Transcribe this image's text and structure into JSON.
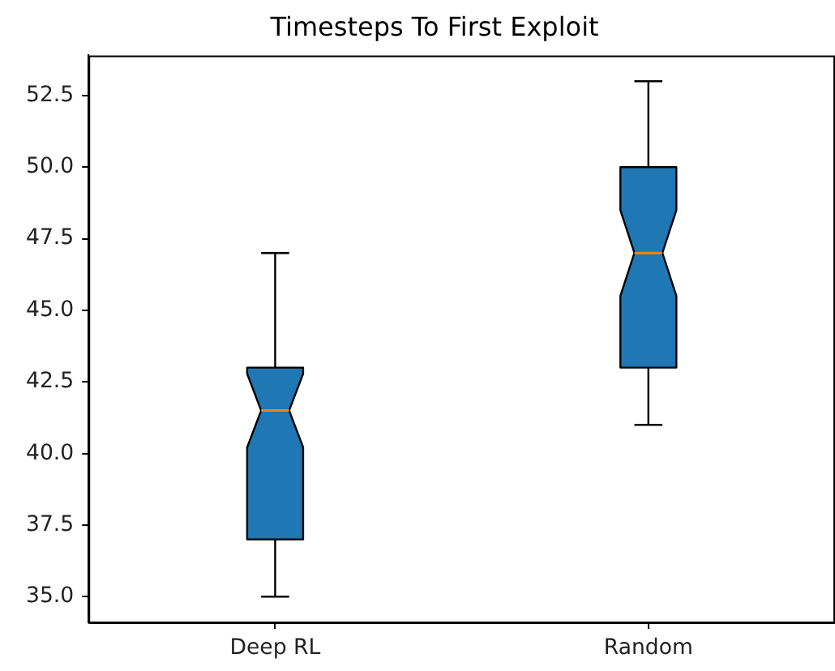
{
  "chart_data": {
    "type": "box",
    "title": "Timesteps To First Exploit",
    "categories": [
      "Deep RL",
      "Random"
    ],
    "boxes": [
      {
        "low": 35,
        "q1": 37,
        "median": 41.5,
        "q3": 43,
        "high": 47
      },
      {
        "low": 41,
        "q1": 43,
        "median": 47,
        "q3": 50,
        "high": 53
      }
    ],
    "color": "#1f77b4",
    "ylim": [
      34.1,
      53.9
    ],
    "yticks": [
      {
        "value": 35,
        "label": "35.0"
      },
      37.5,
      {
        "value": 40,
        "label": "40.0"
      },
      42.5,
      {
        "value": 45,
        "label": "45.0"
      },
      47.5,
      {
        "value": 50,
        "label": "50.0"
      },
      52.5
    ]
  }
}
